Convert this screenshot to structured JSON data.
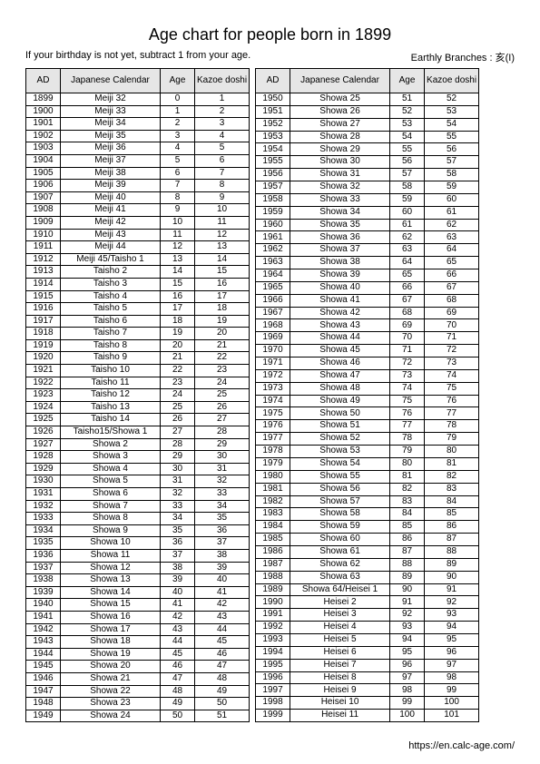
{
  "title": "Age chart for people born in 1899",
  "subtitle_left": "If your birthday is not yet, subtract 1 from your age.",
  "subtitle_right": "Earthly Branches : 亥(I)",
  "footer": "https://en.calc-age.com/",
  "headers": {
    "ad": "AD",
    "jp": "Japanese Calendar",
    "age": "Age",
    "kazoe": "Kazoe doshi"
  },
  "left_rows": [
    {
      "ad": "1899",
      "jp": "Meiji 32",
      "age": "0",
      "kz": "1"
    },
    {
      "ad": "1900",
      "jp": "Meiji 33",
      "age": "1",
      "kz": "2"
    },
    {
      "ad": "1901",
      "jp": "Meiji 34",
      "age": "2",
      "kz": "3"
    },
    {
      "ad": "1902",
      "jp": "Meiji 35",
      "age": "3",
      "kz": "4"
    },
    {
      "ad": "1903",
      "jp": "Meiji 36",
      "age": "4",
      "kz": "5"
    },
    {
      "ad": "1904",
      "jp": "Meiji 37",
      "age": "5",
      "kz": "6"
    },
    {
      "ad": "1905",
      "jp": "Meiji 38",
      "age": "6",
      "kz": "7"
    },
    {
      "ad": "1906",
      "jp": "Meiji 39",
      "age": "7",
      "kz": "8"
    },
    {
      "ad": "1907",
      "jp": "Meiji 40",
      "age": "8",
      "kz": "9"
    },
    {
      "ad": "1908",
      "jp": "Meiji 41",
      "age": "9",
      "kz": "10"
    },
    {
      "ad": "1909",
      "jp": "Meiji 42",
      "age": "10",
      "kz": "11"
    },
    {
      "ad": "1910",
      "jp": "Meiji 43",
      "age": "11",
      "kz": "12"
    },
    {
      "ad": "1911",
      "jp": "Meiji 44",
      "age": "12",
      "kz": "13"
    },
    {
      "ad": "1912",
      "jp": "Meiji 45/Taisho 1",
      "age": "13",
      "kz": "14"
    },
    {
      "ad": "1913",
      "jp": "Taisho 2",
      "age": "14",
      "kz": "15"
    },
    {
      "ad": "1914",
      "jp": "Taisho 3",
      "age": "15",
      "kz": "16"
    },
    {
      "ad": "1915",
      "jp": "Taisho 4",
      "age": "16",
      "kz": "17"
    },
    {
      "ad": "1916",
      "jp": "Taisho 5",
      "age": "17",
      "kz": "18"
    },
    {
      "ad": "1917",
      "jp": "Taisho 6",
      "age": "18",
      "kz": "19"
    },
    {
      "ad": "1918",
      "jp": "Taisho 7",
      "age": "19",
      "kz": "20"
    },
    {
      "ad": "1919",
      "jp": "Taisho 8",
      "age": "20",
      "kz": "21"
    },
    {
      "ad": "1920",
      "jp": "Taisho 9",
      "age": "21",
      "kz": "22"
    },
    {
      "ad": "1921",
      "jp": "Taisho 10",
      "age": "22",
      "kz": "23"
    },
    {
      "ad": "1922",
      "jp": "Taisho 11",
      "age": "23",
      "kz": "24"
    },
    {
      "ad": "1923",
      "jp": "Taisho 12",
      "age": "24",
      "kz": "25"
    },
    {
      "ad": "1924",
      "jp": "Taisho 13",
      "age": "25",
      "kz": "26"
    },
    {
      "ad": "1925",
      "jp": "Taisho 14",
      "age": "26",
      "kz": "27"
    },
    {
      "ad": "1926",
      "jp": "Taisho15/Showa 1",
      "age": "27",
      "kz": "28"
    },
    {
      "ad": "1927",
      "jp": "Showa 2",
      "age": "28",
      "kz": "29"
    },
    {
      "ad": "1928",
      "jp": "Showa 3",
      "age": "29",
      "kz": "30"
    },
    {
      "ad": "1929",
      "jp": "Showa 4",
      "age": "30",
      "kz": "31"
    },
    {
      "ad": "1930",
      "jp": "Showa 5",
      "age": "31",
      "kz": "32"
    },
    {
      "ad": "1931",
      "jp": "Showa 6",
      "age": "32",
      "kz": "33"
    },
    {
      "ad": "1932",
      "jp": "Showa 7",
      "age": "33",
      "kz": "34"
    },
    {
      "ad": "1933",
      "jp": "Showa 8",
      "age": "34",
      "kz": "35"
    },
    {
      "ad": "1934",
      "jp": "Showa 9",
      "age": "35",
      "kz": "36"
    },
    {
      "ad": "1935",
      "jp": "Showa 10",
      "age": "36",
      "kz": "37"
    },
    {
      "ad": "1936",
      "jp": "Showa 11",
      "age": "37",
      "kz": "38"
    },
    {
      "ad": "1937",
      "jp": "Showa 12",
      "age": "38",
      "kz": "39"
    },
    {
      "ad": "1938",
      "jp": "Showa 13",
      "age": "39",
      "kz": "40"
    },
    {
      "ad": "1939",
      "jp": "Showa 14",
      "age": "40",
      "kz": "41"
    },
    {
      "ad": "1940",
      "jp": "Showa 15",
      "age": "41",
      "kz": "42"
    },
    {
      "ad": "1941",
      "jp": "Showa 16",
      "age": "42",
      "kz": "43"
    },
    {
      "ad": "1942",
      "jp": "Showa 17",
      "age": "43",
      "kz": "44"
    },
    {
      "ad": "1943",
      "jp": "Showa 18",
      "age": "44",
      "kz": "45"
    },
    {
      "ad": "1944",
      "jp": "Showa 19",
      "age": "45",
      "kz": "46"
    },
    {
      "ad": "1945",
      "jp": "Showa 20",
      "age": "46",
      "kz": "47"
    },
    {
      "ad": "1946",
      "jp": "Showa 21",
      "age": "47",
      "kz": "48"
    },
    {
      "ad": "1947",
      "jp": "Showa 22",
      "age": "48",
      "kz": "49"
    },
    {
      "ad": "1948",
      "jp": "Showa 23",
      "age": "49",
      "kz": "50"
    },
    {
      "ad": "1949",
      "jp": "Showa 24",
      "age": "50",
      "kz": "51"
    }
  ],
  "right_rows": [
    {
      "ad": "1950",
      "jp": "Showa 25",
      "age": "51",
      "kz": "52"
    },
    {
      "ad": "1951",
      "jp": "Showa 26",
      "age": "52",
      "kz": "53"
    },
    {
      "ad": "1952",
      "jp": "Showa 27",
      "age": "53",
      "kz": "54"
    },
    {
      "ad": "1953",
      "jp": "Showa 28",
      "age": "54",
      "kz": "55"
    },
    {
      "ad": "1954",
      "jp": "Showa 29",
      "age": "55",
      "kz": "56"
    },
    {
      "ad": "1955",
      "jp": "Showa 30",
      "age": "56",
      "kz": "57"
    },
    {
      "ad": "1956",
      "jp": "Showa 31",
      "age": "57",
      "kz": "58"
    },
    {
      "ad": "1957",
      "jp": "Showa 32",
      "age": "58",
      "kz": "59"
    },
    {
      "ad": "1958",
      "jp": "Showa 33",
      "age": "59",
      "kz": "60"
    },
    {
      "ad": "1959",
      "jp": "Showa 34",
      "age": "60",
      "kz": "61"
    },
    {
      "ad": "1960",
      "jp": "Showa 35",
      "age": "61",
      "kz": "62"
    },
    {
      "ad": "1961",
      "jp": "Showa 36",
      "age": "62",
      "kz": "63"
    },
    {
      "ad": "1962",
      "jp": "Showa 37",
      "age": "63",
      "kz": "64"
    },
    {
      "ad": "1963",
      "jp": "Showa 38",
      "age": "64",
      "kz": "65"
    },
    {
      "ad": "1964",
      "jp": "Showa 39",
      "age": "65",
      "kz": "66"
    },
    {
      "ad": "1965",
      "jp": "Showa 40",
      "age": "66",
      "kz": "67"
    },
    {
      "ad": "1966",
      "jp": "Showa 41",
      "age": "67",
      "kz": "68"
    },
    {
      "ad": "1967",
      "jp": "Showa 42",
      "age": "68",
      "kz": "69"
    },
    {
      "ad": "1968",
      "jp": "Showa 43",
      "age": "69",
      "kz": "70"
    },
    {
      "ad": "1969",
      "jp": "Showa 44",
      "age": "70",
      "kz": "71"
    },
    {
      "ad": "1970",
      "jp": "Showa 45",
      "age": "71",
      "kz": "72"
    },
    {
      "ad": "1971",
      "jp": "Showa 46",
      "age": "72",
      "kz": "73"
    },
    {
      "ad": "1972",
      "jp": "Showa 47",
      "age": "73",
      "kz": "74"
    },
    {
      "ad": "1973",
      "jp": "Showa 48",
      "age": "74",
      "kz": "75"
    },
    {
      "ad": "1974",
      "jp": "Showa 49",
      "age": "75",
      "kz": "76"
    },
    {
      "ad": "1975",
      "jp": "Showa 50",
      "age": "76",
      "kz": "77"
    },
    {
      "ad": "1976",
      "jp": "Showa 51",
      "age": "77",
      "kz": "78"
    },
    {
      "ad": "1977",
      "jp": "Showa 52",
      "age": "78",
      "kz": "79"
    },
    {
      "ad": "1978",
      "jp": "Showa 53",
      "age": "79",
      "kz": "80"
    },
    {
      "ad": "1979",
      "jp": "Showa 54",
      "age": "80",
      "kz": "81"
    },
    {
      "ad": "1980",
      "jp": "Showa 55",
      "age": "81",
      "kz": "82"
    },
    {
      "ad": "1981",
      "jp": "Showa 56",
      "age": "82",
      "kz": "83"
    },
    {
      "ad": "1982",
      "jp": "Showa 57",
      "age": "83",
      "kz": "84"
    },
    {
      "ad": "1983",
      "jp": "Showa 58",
      "age": "84",
      "kz": "85"
    },
    {
      "ad": "1984",
      "jp": "Showa 59",
      "age": "85",
      "kz": "86"
    },
    {
      "ad": "1985",
      "jp": "Showa 60",
      "age": "86",
      "kz": "87"
    },
    {
      "ad": "1986",
      "jp": "Showa 61",
      "age": "87",
      "kz": "88"
    },
    {
      "ad": "1987",
      "jp": "Showa 62",
      "age": "88",
      "kz": "89"
    },
    {
      "ad": "1988",
      "jp": "Showa 63",
      "age": "89",
      "kz": "90"
    },
    {
      "ad": "1989",
      "jp": "Showa 64/Heisei 1",
      "age": "90",
      "kz": "91"
    },
    {
      "ad": "1990",
      "jp": "Heisei 2",
      "age": "91",
      "kz": "92"
    },
    {
      "ad": "1991",
      "jp": "Heisei 3",
      "age": "92",
      "kz": "93"
    },
    {
      "ad": "1992",
      "jp": "Heisei 4",
      "age": "93",
      "kz": "94"
    },
    {
      "ad": "1993",
      "jp": "Heisei 5",
      "age": "94",
      "kz": "95"
    },
    {
      "ad": "1994",
      "jp": "Heisei 6",
      "age": "95",
      "kz": "96"
    },
    {
      "ad": "1995",
      "jp": "Heisei 7",
      "age": "96",
      "kz": "97"
    },
    {
      "ad": "1996",
      "jp": "Heisei 8",
      "age": "97",
      "kz": "98"
    },
    {
      "ad": "1997",
      "jp": "Heisei 9",
      "age": "98",
      "kz": "99"
    },
    {
      "ad": "1998",
      "jp": "Heisei 10",
      "age": "99",
      "kz": "100"
    },
    {
      "ad": "1999",
      "jp": "Heisei 11",
      "age": "100",
      "kz": "101"
    }
  ]
}
